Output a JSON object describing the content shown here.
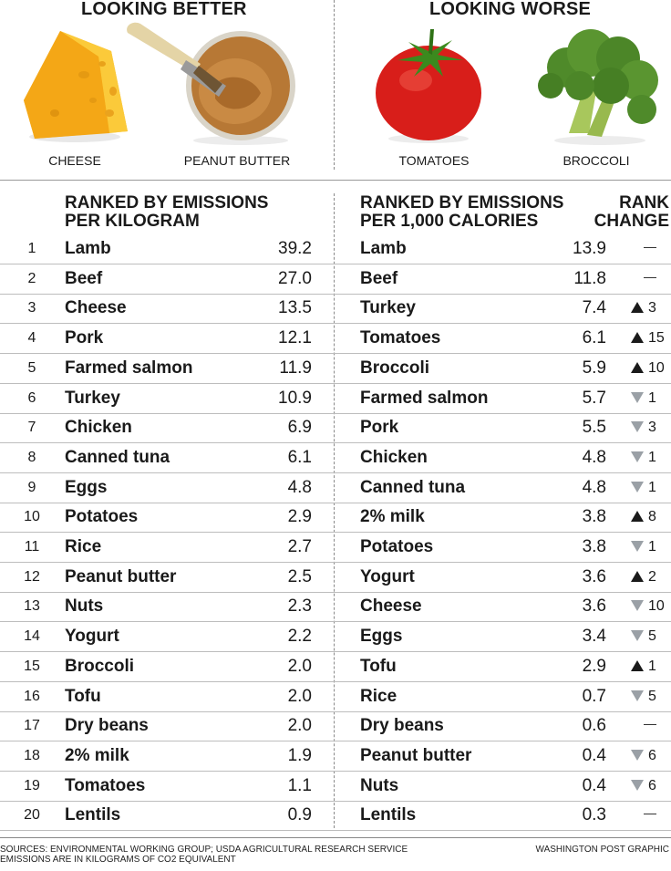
{
  "top": {
    "better_heading": "LOOKING BETTER",
    "worse_heading": "LOOKING WORSE",
    "foods": [
      {
        "label": "CHEESE",
        "icon": "cheese-icon"
      },
      {
        "label": "PEANUT BUTTER",
        "icon": "peanut-butter-icon"
      },
      {
        "label": "TOMATOES",
        "icon": "tomato-icon"
      },
      {
        "label": "BROCCOLI",
        "icon": "broccoli-icon"
      }
    ]
  },
  "headers": {
    "left": "RANKED BY EMISSIONS\nPER KILOGRAM",
    "right": "RANKED BY EMISSIONS\nPER 1,000 CALORIES",
    "change": "RANK\nCHANGE"
  },
  "chart_data": {
    "type": "table",
    "columns": [
      "Rank",
      "Per kilogram item",
      "Per kilogram value",
      "Per 1,000 calories item",
      "Per 1,000 calories value",
      "Rank change"
    ],
    "rows": [
      {
        "rank": "1",
        "kg_name": "Lamb",
        "kg_value": "39.2",
        "cal_name": "Lamb",
        "cal_value": "13.9",
        "change_dir": "none",
        "change": ""
      },
      {
        "rank": "2",
        "kg_name": "Beef",
        "kg_value": "27.0",
        "cal_name": "Beef",
        "cal_value": "11.8",
        "change_dir": "none",
        "change": ""
      },
      {
        "rank": "3",
        "kg_name": "Cheese",
        "kg_value": "13.5",
        "cal_name": "Turkey",
        "cal_value": "7.4",
        "change_dir": "up",
        "change": "3"
      },
      {
        "rank": "4",
        "kg_name": "Pork",
        "kg_value": "12.1",
        "cal_name": "Tomatoes",
        "cal_value": "6.1",
        "change_dir": "up",
        "change": "15"
      },
      {
        "rank": "5",
        "kg_name": "Farmed salmon",
        "kg_value": "11.9",
        "cal_name": "Broccoli",
        "cal_value": "5.9",
        "change_dir": "up",
        "change": "10"
      },
      {
        "rank": "6",
        "kg_name": "Turkey",
        "kg_value": "10.9",
        "cal_name": "Farmed salmon",
        "cal_value": "5.7",
        "change_dir": "down",
        "change": "1"
      },
      {
        "rank": "7",
        "kg_name": "Chicken",
        "kg_value": "6.9",
        "cal_name": "Pork",
        "cal_value": "5.5",
        "change_dir": "down",
        "change": "3"
      },
      {
        "rank": "8",
        "kg_name": "Canned tuna",
        "kg_value": "6.1",
        "cal_name": "Chicken",
        "cal_value": "4.8",
        "change_dir": "down",
        "change": "1"
      },
      {
        "rank": "9",
        "kg_name": "Eggs",
        "kg_value": "4.8",
        "cal_name": "Canned tuna",
        "cal_value": "4.8",
        "change_dir": "down",
        "change": "1"
      },
      {
        "rank": "10",
        "kg_name": "Potatoes",
        "kg_value": "2.9",
        "cal_name": "2% milk",
        "cal_value": "3.8",
        "change_dir": "up",
        "change": "8"
      },
      {
        "rank": "11",
        "kg_name": "Rice",
        "kg_value": "2.7",
        "cal_name": "Potatoes",
        "cal_value": "3.8",
        "change_dir": "down",
        "change": "1"
      },
      {
        "rank": "12",
        "kg_name": "Peanut butter",
        "kg_value": "2.5",
        "cal_name": "Yogurt",
        "cal_value": "3.6",
        "change_dir": "up",
        "change": "2"
      },
      {
        "rank": "13",
        "kg_name": "Nuts",
        "kg_value": "2.3",
        "cal_name": "Cheese",
        "cal_value": "3.6",
        "change_dir": "down",
        "change": "10"
      },
      {
        "rank": "14",
        "kg_name": "Yogurt",
        "kg_value": "2.2",
        "cal_name": "Eggs",
        "cal_value": "3.4",
        "change_dir": "down",
        "change": "5"
      },
      {
        "rank": "15",
        "kg_name": "Broccoli",
        "kg_value": "2.0",
        "cal_name": "Tofu",
        "cal_value": "2.9",
        "change_dir": "up",
        "change": "1"
      },
      {
        "rank": "16",
        "kg_name": "Tofu",
        "kg_value": "2.0",
        "cal_name": "Rice",
        "cal_value": "0.7",
        "change_dir": "down",
        "change": "5"
      },
      {
        "rank": "17",
        "kg_name": "Dry beans",
        "kg_value": "2.0",
        "cal_name": "Dry beans",
        "cal_value": "0.6",
        "change_dir": "none",
        "change": ""
      },
      {
        "rank": "18",
        "kg_name": "2% milk",
        "kg_value": "1.9",
        "cal_name": "Peanut butter",
        "cal_value": "0.4",
        "change_dir": "down",
        "change": "6"
      },
      {
        "rank": "19",
        "kg_name": "Tomatoes",
        "kg_value": "1.1",
        "cal_name": "Nuts",
        "cal_value": "0.4",
        "change_dir": "down",
        "change": "6"
      },
      {
        "rank": "20",
        "kg_name": "Lentils",
        "kg_value": "0.9",
        "cal_name": "Lentils",
        "cal_value": "0.3",
        "change_dir": "none",
        "change": ""
      }
    ]
  },
  "footer": {
    "sources_line1": "SOURCES: ENVIRONMENTAL WORKING GROUP; USDA AGRICULTURAL RESEARCH SERVICE",
    "sources_line2": "EMISSIONS ARE IN KILOGRAMS OF CO2 EQUIVALENT",
    "credit": "WASHINGTON POST GRAPHIC"
  },
  "colors": {
    "text": "#1a1a1a",
    "up_arrow": "#1a1a1a",
    "down_arrow": "#9aa0a6",
    "rule": "#bdbdbd"
  }
}
